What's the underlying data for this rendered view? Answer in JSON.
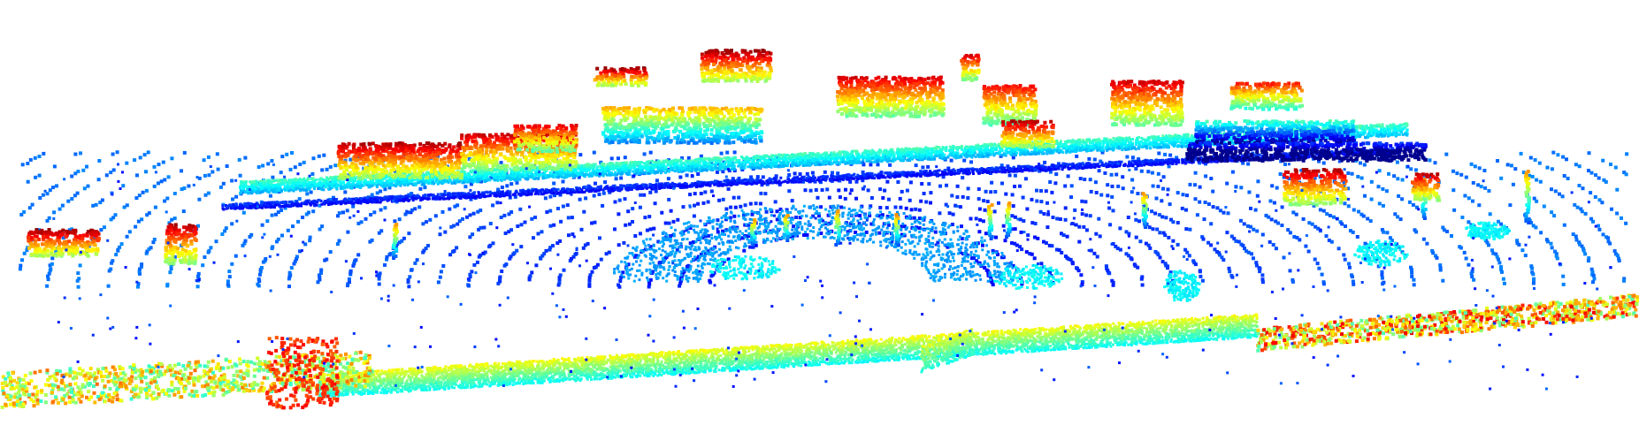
{
  "image": {
    "kind": "lidar-point-cloud",
    "background": "#ffffff",
    "colormap": "jet",
    "color_encoding": "height",
    "colormap_stops": [
      "#00008f",
      "#0000ff",
      "#0080ff",
      "#00ffff",
      "#80ff80",
      "#ffff00",
      "#ff8000",
      "#ff0000",
      "#800000"
    ]
  }
}
